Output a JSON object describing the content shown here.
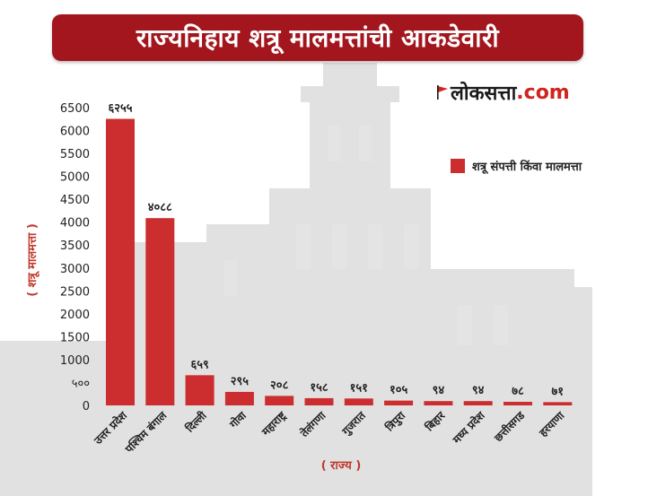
{
  "title": "राज्यनिहाय शत्रू मालमत्तांची आकडेवारी",
  "brand": {
    "name": "लोकसत्ता",
    "tld": ".com"
  },
  "colors": {
    "bar": "#cc2d2e",
    "title_bg": "#a3161d",
    "axis_text": "#c0392b",
    "label_text": "#222222"
  },
  "chart_data": {
    "type": "bar",
    "title": "",
    "xlabel": "( राज्य )",
    "ylabel": "( शत्रू मालमत्ता )",
    "ylim": [
      0,
      6500
    ],
    "yticks": [
      0,
      500,
      1000,
      1500,
      2000,
      2500,
      3000,
      3500,
      4000,
      4500,
      5000,
      5500,
      6000,
      6500
    ],
    "ytick_labels": [
      "0",
      "५००",
      "1000",
      "1500",
      "2000",
      "2500",
      "3000",
      "3500",
      "4000",
      "4500",
      "5000",
      "5500",
      "6000",
      "6500"
    ],
    "grid": false,
    "legend_position": "top-right",
    "categories": [
      "उत्तर प्रदेश",
      "पश्चिम बंगाल",
      "दिल्ली",
      "गोवा",
      "महाराष्ट्र",
      "तेलंगणा",
      "गुजरात",
      "त्रिपुरा",
      "बिहार",
      "मध्य प्रदेश",
      "छत्तीसगड",
      "हरयाणा"
    ],
    "series": [
      {
        "name": "शत्रू संपत्ती किंवा मालमत्ता",
        "values": [
          6255,
          4088,
          659,
          295,
          208,
          158,
          151,
          105,
          94,
          94,
          78,
          71
        ],
        "labels": [
          "६२५५",
          "४०८८",
          "६५९",
          "२९५",
          "२०८",
          "१५८",
          "१५१",
          "१०५",
          "९४",
          "९४",
          "७८",
          "७१"
        ]
      }
    ]
  }
}
